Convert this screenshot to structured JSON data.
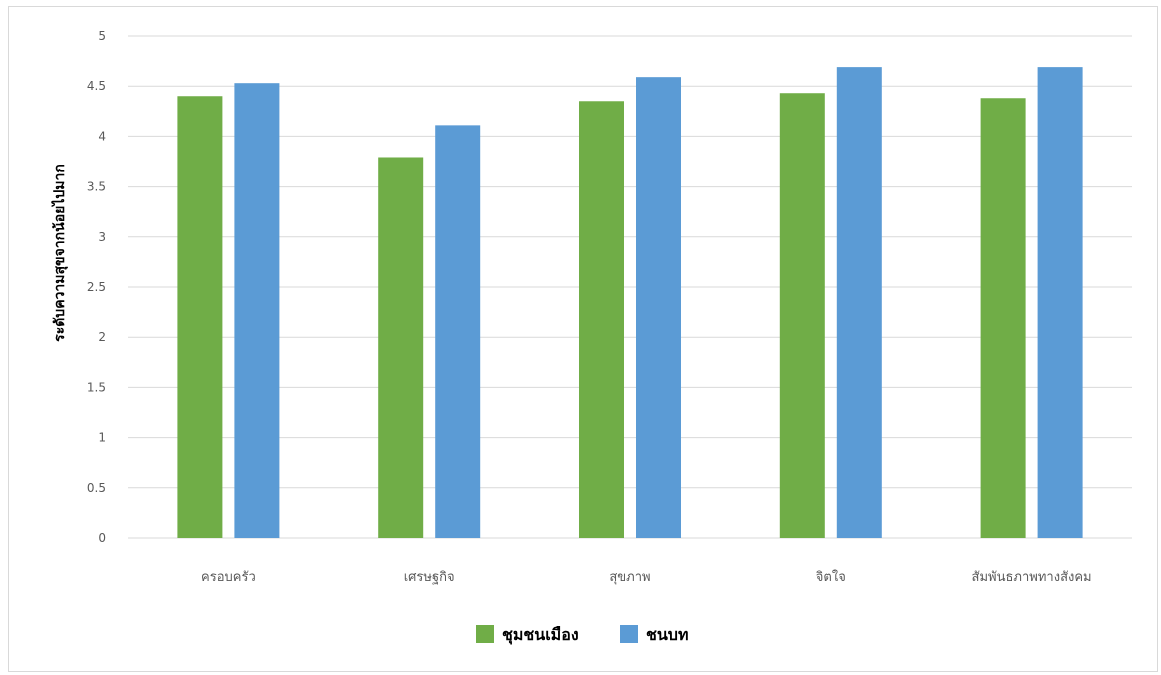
{
  "chart_data": {
    "type": "bar",
    "title": "",
    "xlabel": "",
    "ylabel": "ระดับความสุขจากน้อยไปมาก",
    "ylim": [
      0,
      5
    ],
    "yticks": [
      "0",
      "0.5",
      "1",
      "1.5",
      "2",
      "2.5",
      "3",
      "3.5",
      "4",
      "4.5",
      "5"
    ],
    "categories": [
      "ครอบครัว",
      "เศรษฐกิจ",
      "สุขภาพ",
      "จิตใจ",
      "สัมพันธภาพทางสังคม"
    ],
    "series": [
      {
        "name": "ชุมชนเมือง",
        "color": "#70ad47",
        "values": [
          4.4,
          3.79,
          4.35,
          4.43,
          4.38
        ]
      },
      {
        "name": "ชนบท",
        "color": "#5b9bd5",
        "values": [
          4.53,
          4.11,
          4.59,
          4.69,
          4.69
        ]
      }
    ],
    "grid": true,
    "legend_position": "bottom",
    "gridline_color": "#d9d9d9"
  }
}
